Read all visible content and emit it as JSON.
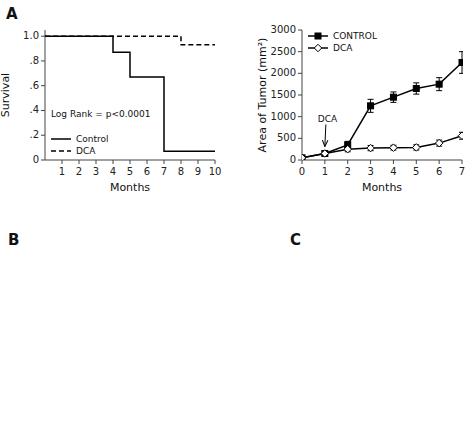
{
  "chart_data": [
    {
      "type": "step",
      "title": "A",
      "xlabel": "Months",
      "ylabel": "Survival",
      "xlim": [
        0,
        10
      ],
      "ylim": [
        0,
        1.05
      ],
      "xticks": [
        1,
        2,
        3,
        4,
        5,
        6,
        7,
        8,
        9,
        10
      ],
      "yticks": [
        0,
        {
          "value": 0.2,
          "label": ".2"
        },
        {
          "value": 0.4,
          "label": ".4"
        },
        {
          "value": 0.6,
          "label": ".6"
        },
        {
          "value": 0.8,
          "label": ".8"
        },
        {
          "value": 1.0,
          "label": "1.0"
        }
      ],
      "legend": "lower left",
      "annotations": [
        "Log Rank = p<0.0001"
      ],
      "series": [
        {
          "name": "Control",
          "color": "#000000",
          "line_style": "solid",
          "x": [
            0,
            4,
            4,
            5,
            5,
            6,
            6,
            7,
            7,
            8,
            8,
            10
          ],
          "values": [
            1.0,
            1.0,
            0.87,
            0.87,
            0.67,
            0.67,
            0.67,
            0.67,
            0.07,
            0.07,
            0.07,
            0.07
          ]
        },
        {
          "name": "DCA",
          "color": "#000000",
          "line_style": "dashed",
          "x": [
            0,
            8,
            8,
            10
          ],
          "values": [
            1.0,
            1.0,
            0.93,
            0.93
          ]
        }
      ]
    },
    {
      "type": "line",
      "xlabel": "Months",
      "ylabel": "Area of Tumor (mm²)",
      "x": [
        0,
        1,
        2,
        3,
        4,
        5,
        6,
        7
      ],
      "xlim": [
        0,
        7
      ],
      "ylim": [
        0,
        3000
      ],
      "xticks": [
        0,
        1,
        2,
        3,
        4,
        5,
        6,
        7
      ],
      "yticks": [
        0,
        500,
        1000,
        1500,
        2000,
        2500,
        3000
      ],
      "legend": "upper left",
      "annotations": [
        {
          "text": "DCA",
          "x": 1,
          "y": 150
        }
      ],
      "series": [
        {
          "name": "CONTROL",
          "color": "#000000",
          "line_style": "solid",
          "marker": "square",
          "values": [
            50,
            150,
            350,
            1250,
            1450,
            1650,
            1750,
            2250
          ],
          "errors": [
            20,
            50,
            80,
            150,
            120,
            130,
            150,
            250
          ]
        },
        {
          "name": "DCA",
          "color": "#000000",
          "line_style": "solid",
          "marker": "diamond-open",
          "values": [
            50,
            150,
            250,
            275,
            285,
            290,
            390,
            560
          ],
          "errors": [
            20,
            50,
            60,
            60,
            55,
            60,
            70,
            80
          ]
        }
      ]
    }
  ],
  "annotations": [
    "B",
    "C"
  ]
}
